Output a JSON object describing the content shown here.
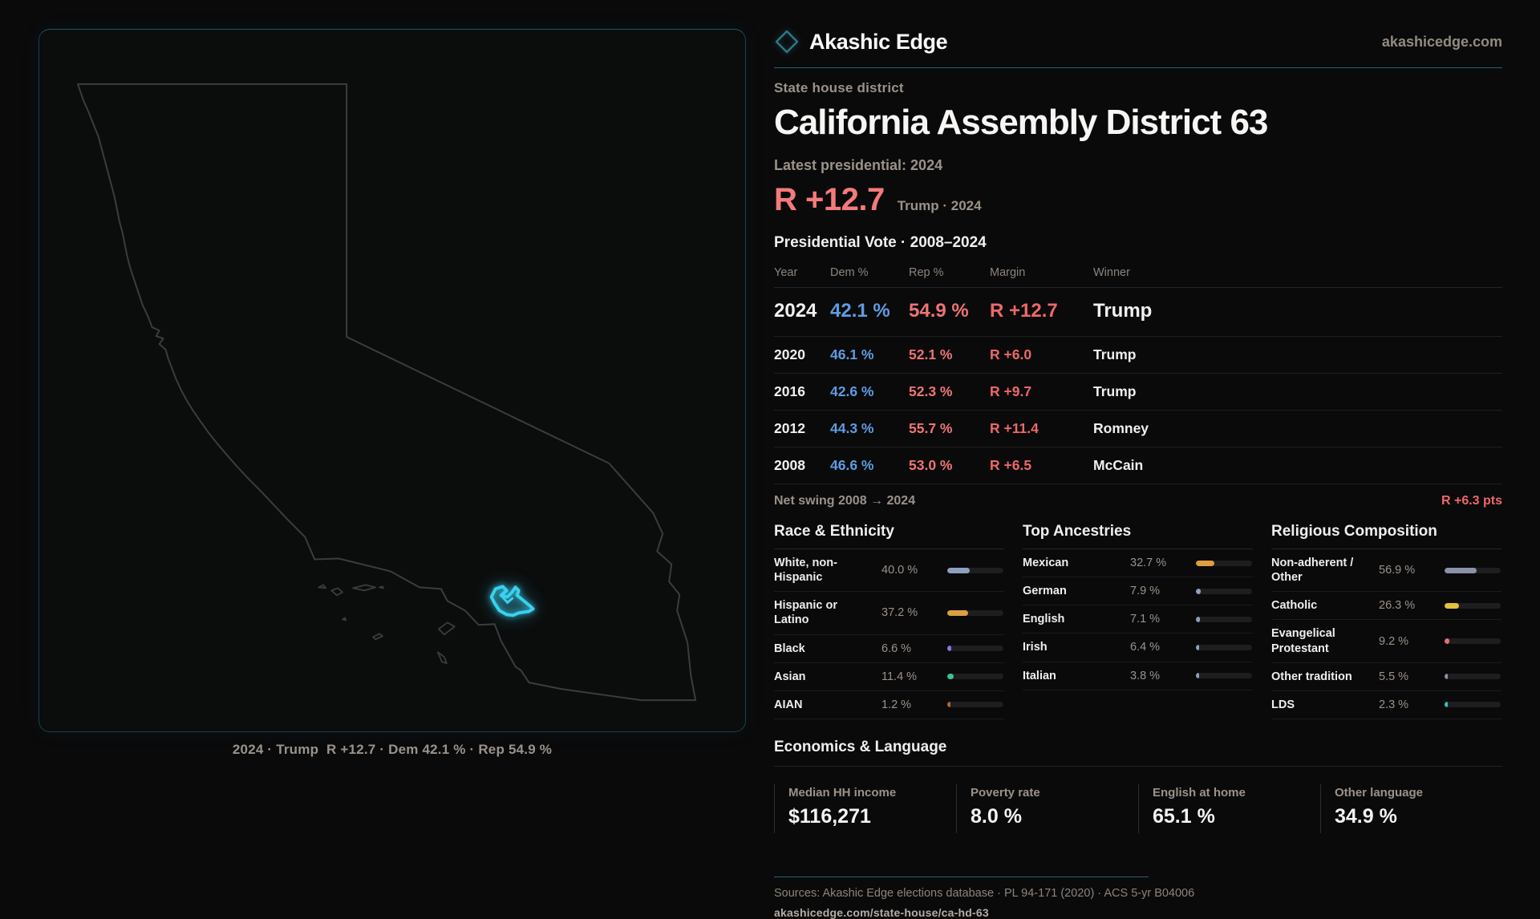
{
  "header": {
    "brand": "Akashic Edge",
    "domain": "akashicedge.com"
  },
  "title": {
    "kicker": "State house district",
    "heading": "California Assembly District 63",
    "latest_label": "Latest presidential: 2024",
    "margin_big": "R +12.7",
    "margin_context": "Trump · 2024"
  },
  "table": {
    "title": "Presidential Vote · 2008–2024",
    "columns": [
      "Year",
      "Dem %",
      "Rep %",
      "Margin",
      "Winner"
    ],
    "rows": [
      {
        "year": "2024",
        "dem": "42.1 %",
        "rep": "54.9 %",
        "margin": "R +12.7",
        "winner": "Trump"
      },
      {
        "year": "2020",
        "dem": "46.1 %",
        "rep": "52.1 %",
        "margin": "R +6.0",
        "winner": "Trump"
      },
      {
        "year": "2016",
        "dem": "42.6 %",
        "rep": "52.3 %",
        "margin": "R +9.7",
        "winner": "Trump"
      },
      {
        "year": "2012",
        "dem": "44.3 %",
        "rep": "55.7 %",
        "margin": "R +11.4",
        "winner": "Romney"
      },
      {
        "year": "2008",
        "dem": "46.6 %",
        "rep": "53.0 %",
        "margin": "R +6.5",
        "winner": "McCain"
      }
    ],
    "net_swing_label": "Net swing 2008 → 2024",
    "net_swing_value": "R +6.3 pts"
  },
  "demographics": {
    "race": {
      "title": "Race & Ethnicity",
      "rows": [
        {
          "label": "White, non-Hispanic",
          "value": "40.0 %",
          "pct": 40.0,
          "color": "#8ca1bd"
        },
        {
          "label": "Hispanic or Latino",
          "value": "37.2 %",
          "pct": 37.2,
          "color": "#dd9f40"
        },
        {
          "label": "Black",
          "value": "6.6 %",
          "pct": 6.6,
          "color": "#8677e8"
        },
        {
          "label": "Asian",
          "value": "11.4 %",
          "pct": 11.4,
          "color": "#3fc48e"
        },
        {
          "label": "AIAN",
          "value": "1.2 %",
          "pct": 1.2,
          "color": "#b2662c"
        }
      ]
    },
    "ancestries": {
      "title": "Top Ancestries",
      "rows": [
        {
          "label": "Mexican",
          "value": "32.7 %",
          "pct": 32.7,
          "color": "#dd9f40"
        },
        {
          "label": "German",
          "value": "7.9 %",
          "pct": 7.9,
          "color": "#8ca1bd"
        },
        {
          "label": "English",
          "value": "7.1 %",
          "pct": 7.1,
          "color": "#8ca1bd"
        },
        {
          "label": "Irish",
          "value": "6.4 %",
          "pct": 6.4,
          "color": "#8ca1bd"
        },
        {
          "label": "Italian",
          "value": "3.8 %",
          "pct": 3.8,
          "color": "#8ca1bd"
        }
      ]
    },
    "religion": {
      "title": "Religious Composition",
      "rows": [
        {
          "label": "Non-adherent / Other",
          "value": "56.9 %",
          "pct": 56.9,
          "color": "#8a92a6"
        },
        {
          "label": "Catholic",
          "value": "26.3 %",
          "pct": 26.3,
          "color": "#e2c23c"
        },
        {
          "label": "Evangelical Protestant",
          "value": "9.2 %",
          "pct": 9.2,
          "color": "#e57070"
        },
        {
          "label": "Other tradition",
          "value": "5.5 %",
          "pct": 5.5,
          "color": "#8a93a3"
        },
        {
          "label": "LDS",
          "value": "2.3 %",
          "pct": 2.3,
          "color": "#2fc5b5"
        }
      ]
    }
  },
  "economics": {
    "title": "Economics & Language",
    "stats": [
      {
        "label": "Median HH income",
        "value": "$116,271"
      },
      {
        "label": "Poverty rate",
        "value": "8.0 %"
      },
      {
        "label": "English at home",
        "value": "65.1 %"
      },
      {
        "label": "Other language",
        "value": "34.9 %"
      }
    ]
  },
  "map": {
    "caption": "2024 · Trump  R +12.7 · Dem 42.1 % · Rep 54.9 %"
  },
  "footer": {
    "sources": "Sources: Akashic Edge elections database · PL 94-171 (2020) · ACS 5-yr B04006",
    "url": "akashicedge.com/state-house/ca-hd-63"
  },
  "colors": {
    "dem_blue": "#5e9ce2",
    "rep_red": "#ef7474",
    "margin_red": "#ee6868",
    "accent_teal": "#27626c",
    "district_cyan": "#3ad0ee"
  }
}
